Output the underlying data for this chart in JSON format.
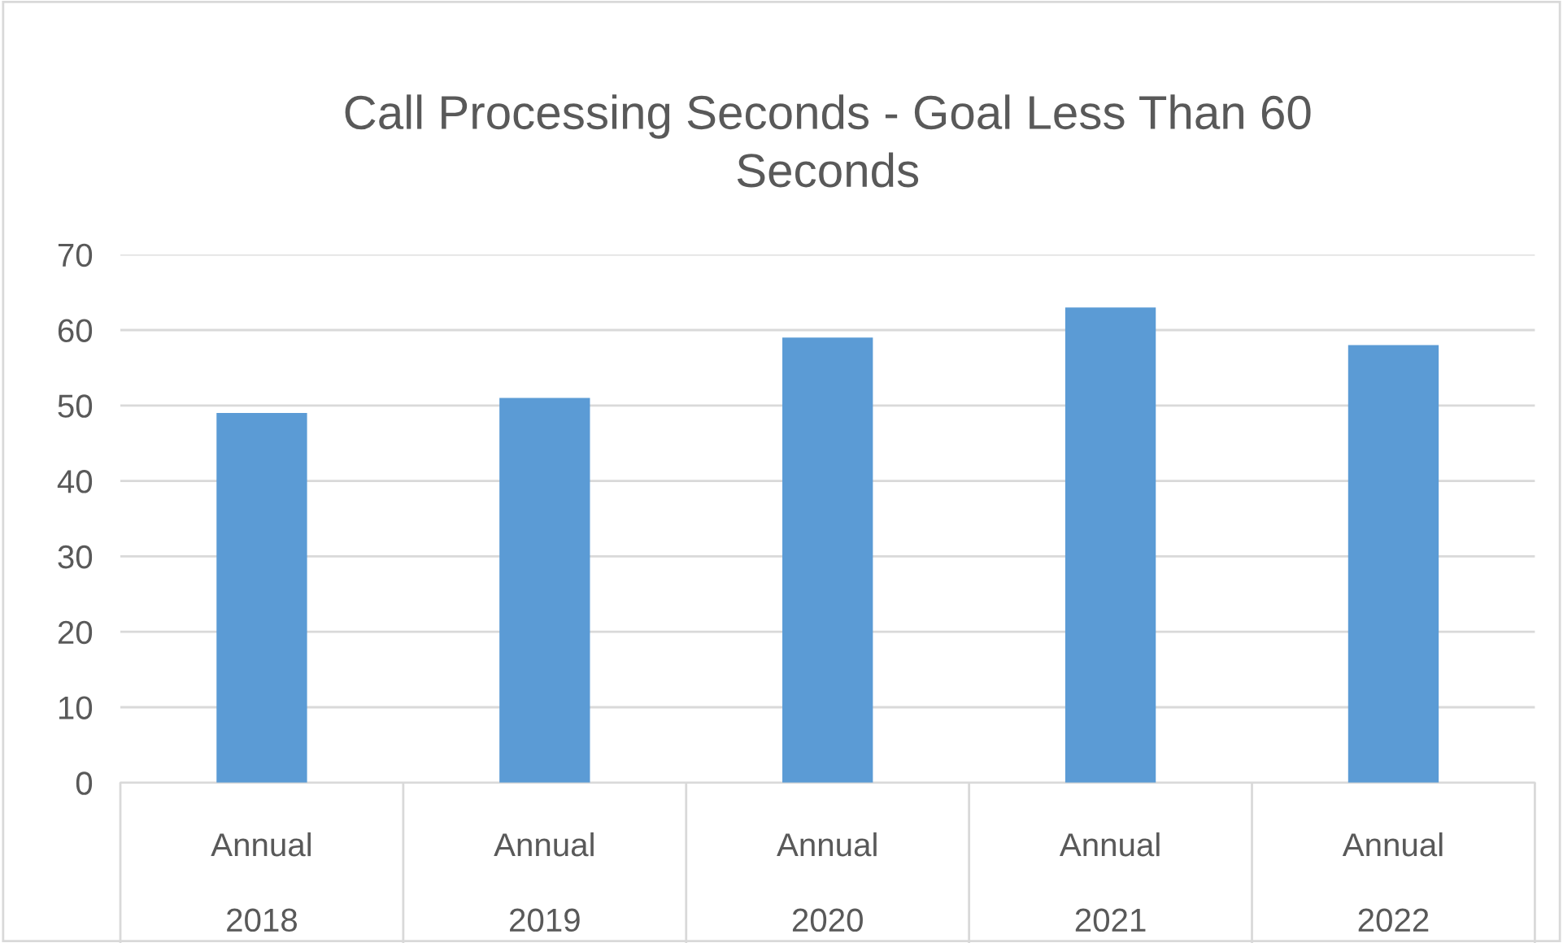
{
  "chart_data": {
    "type": "bar",
    "title": "Call Processing Seconds - Goal Less Than 60\nSeconds",
    "categories": [
      "Annual\n\n2018",
      "Annual\n\n2019",
      "Annual\n\n2020",
      "Annual\n\n2021",
      "Annual\n\n2022"
    ],
    "values": [
      49,
      51,
      59,
      63,
      58
    ],
    "color": "#5b9bd5",
    "ylim": [
      0,
      70
    ],
    "yticks": [
      0,
      10,
      20,
      30,
      40,
      50,
      60,
      70
    ],
    "grid": "y",
    "legend": false
  }
}
